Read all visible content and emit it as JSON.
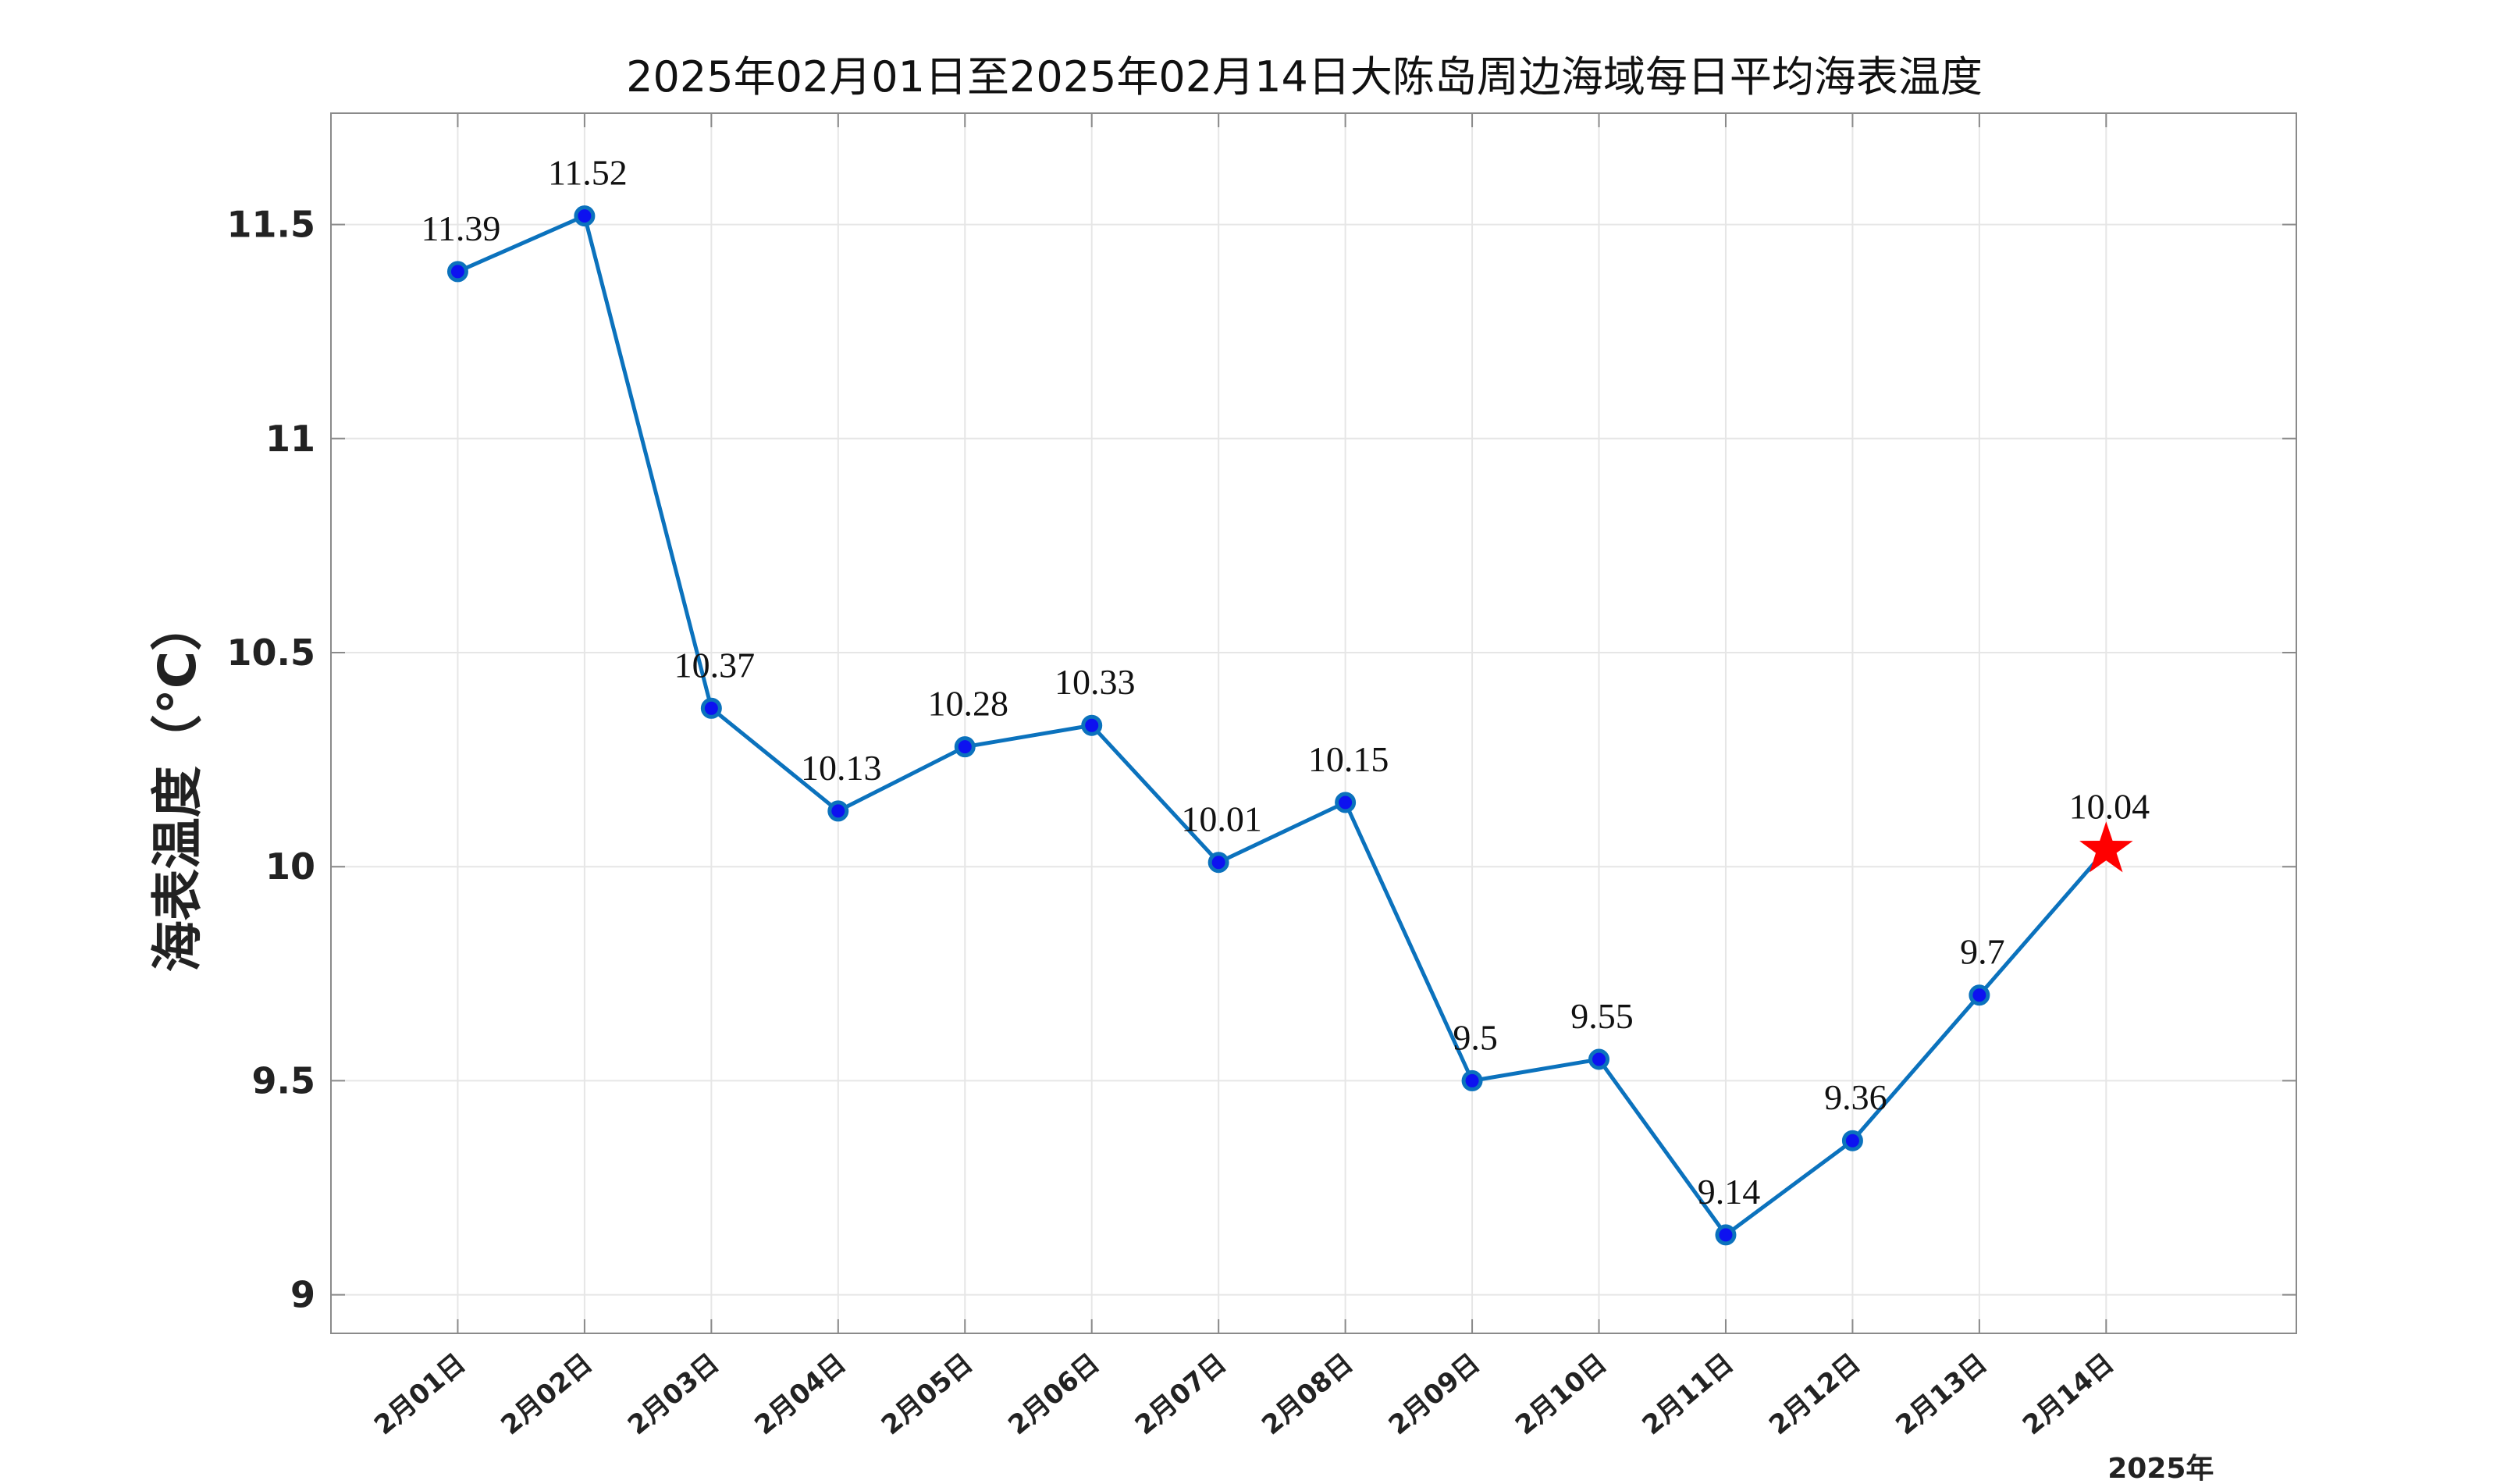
{
  "chart_data": {
    "type": "line",
    "title": "2025年02月01日至2025年02月14日大陈岛周边海域每日平均海表温度",
    "xlabel": "",
    "ylabel": "海表温度（°C）",
    "year_label": "2025年",
    "categories": [
      "2月01日",
      "2月02日",
      "2月03日",
      "2月04日",
      "2月05日",
      "2月06日",
      "2月07日",
      "2月08日",
      "2月09日",
      "2月10日",
      "2月11日",
      "2月12日",
      "2月13日",
      "2月14日"
    ],
    "series": [
      {
        "values": [
          11.39,
          11.52,
          10.37,
          10.13,
          10.28,
          10.33,
          10.01,
          10.15,
          9.5,
          9.55,
          9.14,
          9.36,
          9.7,
          10.04
        ]
      }
    ],
    "data_labels": [
      "11.39",
      "11.52",
      "10.37",
      "10.13",
      "10.28",
      "10.33",
      "10.01",
      "10.15",
      "9.5",
      "9.55",
      "9.14",
      "9.36",
      "9.7",
      "10.04"
    ],
    "ylim": [
      8.91,
      11.76
    ],
    "yticks": [
      9,
      9.5,
      10,
      10.5,
      11,
      11.5
    ],
    "ytick_labels": [
      "9",
      "9.5",
      "10",
      "10.5",
      "11",
      "11.5"
    ],
    "grid": true,
    "highlight_last": "star",
    "colors": {
      "line": "#0b72bd",
      "marker_fill": "#0d12f0",
      "marker_edge": "#0b72bd",
      "star": "#ff0000",
      "grid": "#e6e6e6",
      "axes": "#8a8a8a"
    }
  }
}
